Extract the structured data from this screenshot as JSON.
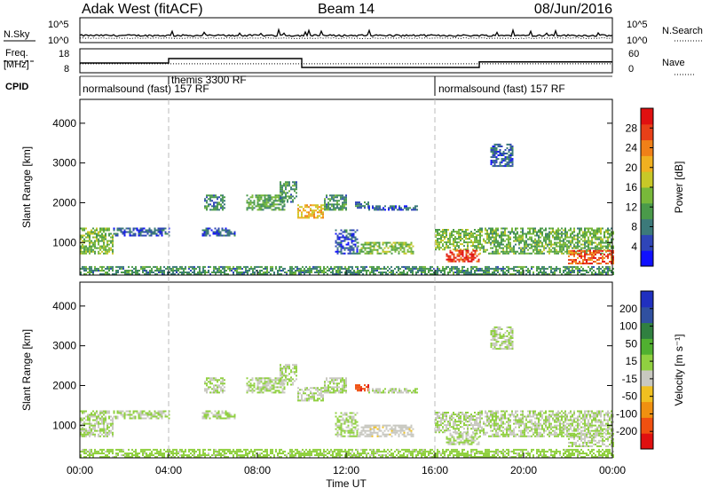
{
  "header": {
    "station": "Adak West (fitACF)",
    "beam": "Beam 14",
    "date": "08/Jun/2016"
  },
  "sky_panel": {
    "left_label": "N.Sky",
    "right_label": "N.Search",
    "left_ticks": [
      "10^5",
      "10^0"
    ],
    "right_ticks": [
      "10^5",
      "10^0"
    ]
  },
  "freq_panel": {
    "left_label_line1": "Freq.",
    "left_label_line2": "[MHz]",
    "right_label": "Nave",
    "left_ticks": [
      "18",
      "8"
    ],
    "right_ticks": [
      "60",
      "0"
    ],
    "freq_steps": [
      {
        "from_hour": 0,
        "to_hour": 4,
        "mhz": 12
      },
      {
        "from_hour": 4,
        "to_hour": 10,
        "mhz": 14
      },
      {
        "from_hour": 10,
        "to_hour": 18,
        "mhz": 10
      },
      {
        "from_hour": 18,
        "to_hour": 24,
        "mhz": 12.5
      }
    ],
    "nave_level": 22
  },
  "cpid": {
    "label": "CPID",
    "segments": [
      {
        "from_hour": 0,
        "text": "normalsound (fast) 157 RF"
      },
      {
        "from_hour": 4,
        "text": "themis 3300 RF"
      },
      {
        "from_hour": 16,
        "text": "normalsound (fast) 157 RF"
      }
    ]
  },
  "power_panel": {
    "ylabel": "Slant Range [km]",
    "ytick_labels": [
      "1000",
      "2000",
      "3000",
      "4000"
    ],
    "colorbar": {
      "label": "Power [dB]",
      "ticks": [
        "4",
        "8",
        "12",
        "16",
        "20",
        "24",
        "28"
      ],
      "colors": [
        "#1010ff",
        "#2f45b8",
        "#3c7a7a",
        "#4a9a4a",
        "#78b83a",
        "#c8c828",
        "#f0b020",
        "#f08018",
        "#e84018",
        "#e01010"
      ]
    }
  },
  "velocity_panel": {
    "ylabel": "Slant Range [km]",
    "ytick_labels": [
      "1000",
      "2000",
      "3000",
      "4000"
    ],
    "colorbar": {
      "label": "Velocity [m s⁻¹]",
      "ticks": [
        "200",
        "100",
        "50",
        "15",
        "-15",
        "-50",
        "-100",
        "-200"
      ],
      "colors": [
        "#2030c0",
        "#3050a0",
        "#308040",
        "#50b030",
        "#90d040",
        "#c8c8c0",
        "#f0c020",
        "#f09010",
        "#f05010",
        "#e01010"
      ]
    }
  },
  "x_axis": {
    "label": "Time UT",
    "ticks": [
      "00:00",
      "04:00",
      "08:00",
      "12:00",
      "16:00",
      "20:00",
      "00:00"
    ]
  },
  "chart_data": {
    "type": "heatmap",
    "title": "Adak West (fitACF) Beam 14 08/Jun/2016",
    "xlabel": "Time UT",
    "ylabel": "Slant Range [km]",
    "xlim_hours": [
      0,
      24
    ],
    "ylim_km": [
      180,
      4600
    ],
    "power_range_db": [
      0,
      32
    ],
    "velocity_range": [
      -250,
      250
    ],
    "echo_regions": [
      {
        "t": [
          0,
          1.5
        ],
        "r": [
          700,
          1350
        ],
        "power": 14,
        "vel": 0
      },
      {
        "t": [
          1.5,
          4
        ],
        "r": [
          1150,
          1350
        ],
        "power": 6,
        "vel": 0
      },
      {
        "t": [
          5.5,
          7
        ],
        "r": [
          1150,
          1350
        ],
        "power": 6,
        "vel": 0
      },
      {
        "t": [
          5.6,
          6.5
        ],
        "r": [
          1800,
          2200
        ],
        "power": 9,
        "vel": 0
      },
      {
        "t": [
          7.5,
          9.2
        ],
        "r": [
          1800,
          2200
        ],
        "power": 12,
        "vel": 0
      },
      {
        "t": [
          9,
          9.8
        ],
        "r": [
          2000,
          2500
        ],
        "power": 10,
        "vel": 0
      },
      {
        "t": [
          9.8,
          11
        ],
        "r": [
          1600,
          1950
        ],
        "power": 20,
        "vel": 0
      },
      {
        "t": [
          11,
          12
        ],
        "r": [
          1800,
          2200
        ],
        "power": 10,
        "vel": 0
      },
      {
        "t": [
          11.5,
          12.5
        ],
        "r": [
          700,
          1300
        ],
        "power": 6,
        "vel": 0
      },
      {
        "t": [
          12.5,
          15
        ],
        "r": [
          700,
          1000
        ],
        "power": 14,
        "vel": -40
      },
      {
        "t": [
          12.4,
          13
        ],
        "r": [
          1850,
          2000
        ],
        "power": 8,
        "vel": -180
      },
      {
        "t": [
          13,
          15.2
        ],
        "r": [
          1800,
          1900
        ],
        "power": 6,
        "vel": 0
      },
      {
        "t": [
          16,
          18
        ],
        "r": [
          800,
          1300
        ],
        "power": 14,
        "vel": 0
      },
      {
        "t": [
          16.5,
          18
        ],
        "r": [
          500,
          800
        ],
        "power": 28,
        "vel": 0
      },
      {
        "t": [
          18,
          24
        ],
        "r": [
          700,
          1350
        ],
        "power": 13,
        "vel": 0
      },
      {
        "t": [
          22,
          24
        ],
        "r": [
          450,
          800
        ],
        "power": 26,
        "vel": 0
      },
      {
        "t": [
          18.5,
          19.5
        ],
        "r": [
          2900,
          3450
        ],
        "power": 6,
        "vel": 0
      },
      {
        "t": [
          0,
          24
        ],
        "r": [
          180,
          380
        ],
        "power": 10,
        "vel": 10
      }
    ]
  }
}
